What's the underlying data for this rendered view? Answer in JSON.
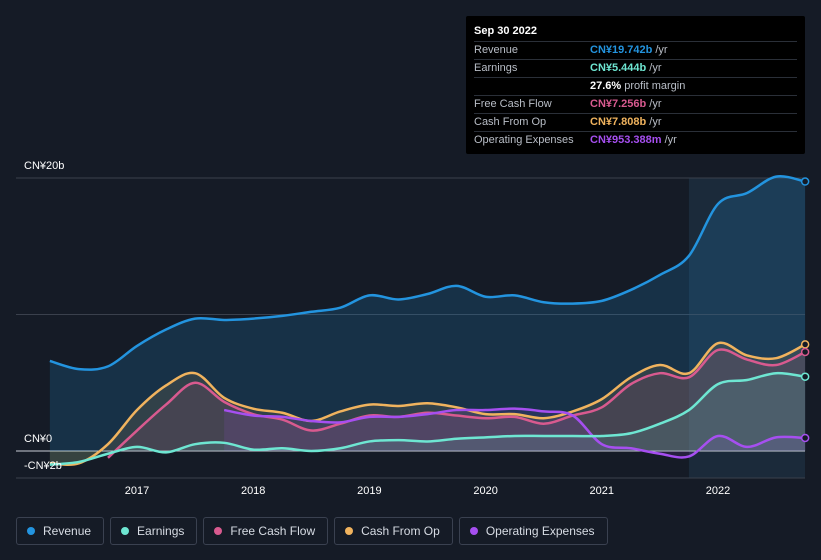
{
  "tooltip": {
    "date": "Sep 30 2022",
    "rows": [
      {
        "label": "Revenue",
        "value": "CN¥19.742b",
        "unit": "/yr",
        "color": "#2394df"
      },
      {
        "label": "Earnings",
        "value": "CN¥5.444b",
        "unit": "/yr",
        "color": "#6ee6d2"
      },
      {
        "label": "",
        "value": "27.6%",
        "unit": "profit margin",
        "color": "#ffffff"
      },
      {
        "label": "Free Cash Flow",
        "value": "CN¥7.256b",
        "unit": "/yr",
        "color": "#d85a8f"
      },
      {
        "label": "Cash From Op",
        "value": "CN¥7.808b",
        "unit": "/yr",
        "color": "#f0b35e"
      },
      {
        "label": "Operating Expenses",
        "value": "CN¥953.388m",
        "unit": "/yr",
        "color": "#a64ff0"
      }
    ]
  },
  "y_labels": [
    "CN¥20b",
    "CN¥0",
    "-CN¥2b"
  ],
  "x_labels": [
    "2017",
    "2018",
    "2019",
    "2020",
    "2021",
    "2022"
  ],
  "legend": [
    {
      "label": "Revenue",
      "color": "#2394df"
    },
    {
      "label": "Earnings",
      "color": "#6ee6d2"
    },
    {
      "label": "Free Cash Flow",
      "color": "#d85a8f"
    },
    {
      "label": "Cash From Op",
      "color": "#f0b35e"
    },
    {
      "label": "Operating Expenses",
      "color": "#a64ff0"
    }
  ],
  "chart_data": {
    "type": "line",
    "units": "CN¥ billions",
    "ylim": [
      -2,
      20
    ],
    "x_ticks": [
      2017,
      2018,
      2019,
      2020,
      2021,
      2022
    ],
    "highlight_range": [
      2021.75,
      2022.75
    ],
    "series": [
      {
        "name": "Revenue",
        "color": "#2394df",
        "fill": true,
        "end_marker": true,
        "points": [
          [
            2016.25,
            6.6
          ],
          [
            2016.5,
            6.0
          ],
          [
            2016.75,
            6.2
          ],
          [
            2017.0,
            7.7
          ],
          [
            2017.25,
            8.9
          ],
          [
            2017.5,
            9.7
          ],
          [
            2017.75,
            9.6
          ],
          [
            2018.0,
            9.7
          ],
          [
            2018.25,
            9.9
          ],
          [
            2018.5,
            10.2
          ],
          [
            2018.75,
            10.5
          ],
          [
            2019.0,
            11.4
          ],
          [
            2019.25,
            11.1
          ],
          [
            2019.5,
            11.5
          ],
          [
            2019.75,
            12.1
          ],
          [
            2020.0,
            11.3
          ],
          [
            2020.25,
            11.4
          ],
          [
            2020.5,
            10.9
          ],
          [
            2020.75,
            10.8
          ],
          [
            2021.0,
            11.0
          ],
          [
            2021.25,
            11.8
          ],
          [
            2021.5,
            12.9
          ],
          [
            2021.75,
            14.3
          ],
          [
            2022.0,
            18.1
          ],
          [
            2022.25,
            18.9
          ],
          [
            2022.5,
            20.1
          ],
          [
            2022.75,
            19.742
          ]
        ]
      },
      {
        "name": "Cash From Op",
        "color": "#f0b35e",
        "fill": true,
        "end_marker": true,
        "points": [
          [
            2016.25,
            -0.9
          ],
          [
            2016.5,
            -0.9
          ],
          [
            2016.75,
            0.5
          ],
          [
            2017.0,
            3.0
          ],
          [
            2017.25,
            4.8
          ],
          [
            2017.5,
            5.7
          ],
          [
            2017.75,
            3.9
          ],
          [
            2018.0,
            3.1
          ],
          [
            2018.25,
            2.8
          ],
          [
            2018.5,
            2.2
          ],
          [
            2018.75,
            2.9
          ],
          [
            2019.0,
            3.4
          ],
          [
            2019.25,
            3.3
          ],
          [
            2019.5,
            3.5
          ],
          [
            2019.75,
            3.2
          ],
          [
            2020.0,
            2.7
          ],
          [
            2020.25,
            2.7
          ],
          [
            2020.5,
            2.4
          ],
          [
            2020.75,
            2.9
          ],
          [
            2021.0,
            3.8
          ],
          [
            2021.25,
            5.4
          ],
          [
            2021.5,
            6.3
          ],
          [
            2021.75,
            5.7
          ],
          [
            2022.0,
            7.9
          ],
          [
            2022.25,
            7.0
          ],
          [
            2022.5,
            6.8
          ],
          [
            2022.75,
            7.808
          ]
        ]
      },
      {
        "name": "Free Cash Flow",
        "color": "#d85a8f",
        "fill": true,
        "end_marker": true,
        "points": [
          [
            2016.75,
            -0.5
          ],
          [
            2017.0,
            1.5
          ],
          [
            2017.25,
            3.4
          ],
          [
            2017.5,
            5.0
          ],
          [
            2017.75,
            3.6
          ],
          [
            2018.0,
            2.7
          ],
          [
            2018.25,
            2.3
          ],
          [
            2018.5,
            1.5
          ],
          [
            2018.75,
            2.0
          ],
          [
            2019.0,
            2.6
          ],
          [
            2019.25,
            2.5
          ],
          [
            2019.5,
            2.8
          ],
          [
            2019.75,
            2.6
          ],
          [
            2020.0,
            2.4
          ],
          [
            2020.25,
            2.5
          ],
          [
            2020.5,
            2.0
          ],
          [
            2020.75,
            2.6
          ],
          [
            2021.0,
            3.2
          ],
          [
            2021.25,
            4.9
          ],
          [
            2021.5,
            5.7
          ],
          [
            2021.75,
            5.4
          ],
          [
            2022.0,
            7.4
          ],
          [
            2022.25,
            6.7
          ],
          [
            2022.5,
            6.3
          ],
          [
            2022.75,
            7.256
          ]
        ]
      },
      {
        "name": "Operating Expenses",
        "color": "#a64ff0",
        "fill": true,
        "end_marker": true,
        "points": [
          [
            2017.75,
            3.0
          ],
          [
            2018.0,
            2.6
          ],
          [
            2018.25,
            2.5
          ],
          [
            2018.5,
            2.2
          ],
          [
            2018.75,
            2.1
          ],
          [
            2019.0,
            2.5
          ],
          [
            2019.25,
            2.5
          ],
          [
            2019.5,
            2.7
          ],
          [
            2019.75,
            3.0
          ],
          [
            2020.0,
            3.0
          ],
          [
            2020.25,
            3.1
          ],
          [
            2020.5,
            2.9
          ],
          [
            2020.75,
            2.6
          ],
          [
            2021.0,
            0.5
          ],
          [
            2021.25,
            0.2
          ],
          [
            2021.5,
            -0.2
          ],
          [
            2021.75,
            -0.4
          ],
          [
            2022.0,
            1.1
          ],
          [
            2022.25,
            0.3
          ],
          [
            2022.5,
            1.0
          ],
          [
            2022.75,
            0.953
          ]
        ]
      },
      {
        "name": "Earnings",
        "color": "#6ee6d2",
        "fill": true,
        "end_marker": true,
        "points": [
          [
            2016.25,
            -1.0
          ],
          [
            2016.5,
            -0.8
          ],
          [
            2016.75,
            -0.2
          ],
          [
            2017.0,
            0.3
          ],
          [
            2017.25,
            -0.1
          ],
          [
            2017.5,
            0.5
          ],
          [
            2017.75,
            0.6
          ],
          [
            2018.0,
            0.1
          ],
          [
            2018.25,
            0.2
          ],
          [
            2018.5,
            0.0
          ],
          [
            2018.75,
            0.2
          ],
          [
            2019.0,
            0.7
          ],
          [
            2019.25,
            0.8
          ],
          [
            2019.5,
            0.7
          ],
          [
            2019.75,
            0.9
          ],
          [
            2020.0,
            1.0
          ],
          [
            2020.25,
            1.1
          ],
          [
            2020.5,
            1.1
          ],
          [
            2020.75,
            1.1
          ],
          [
            2021.0,
            1.1
          ],
          [
            2021.25,
            1.3
          ],
          [
            2021.5,
            2.0
          ],
          [
            2021.75,
            3.0
          ],
          [
            2022.0,
            4.9
          ],
          [
            2022.25,
            5.2
          ],
          [
            2022.5,
            5.7
          ],
          [
            2022.75,
            5.444
          ]
        ]
      }
    ]
  }
}
